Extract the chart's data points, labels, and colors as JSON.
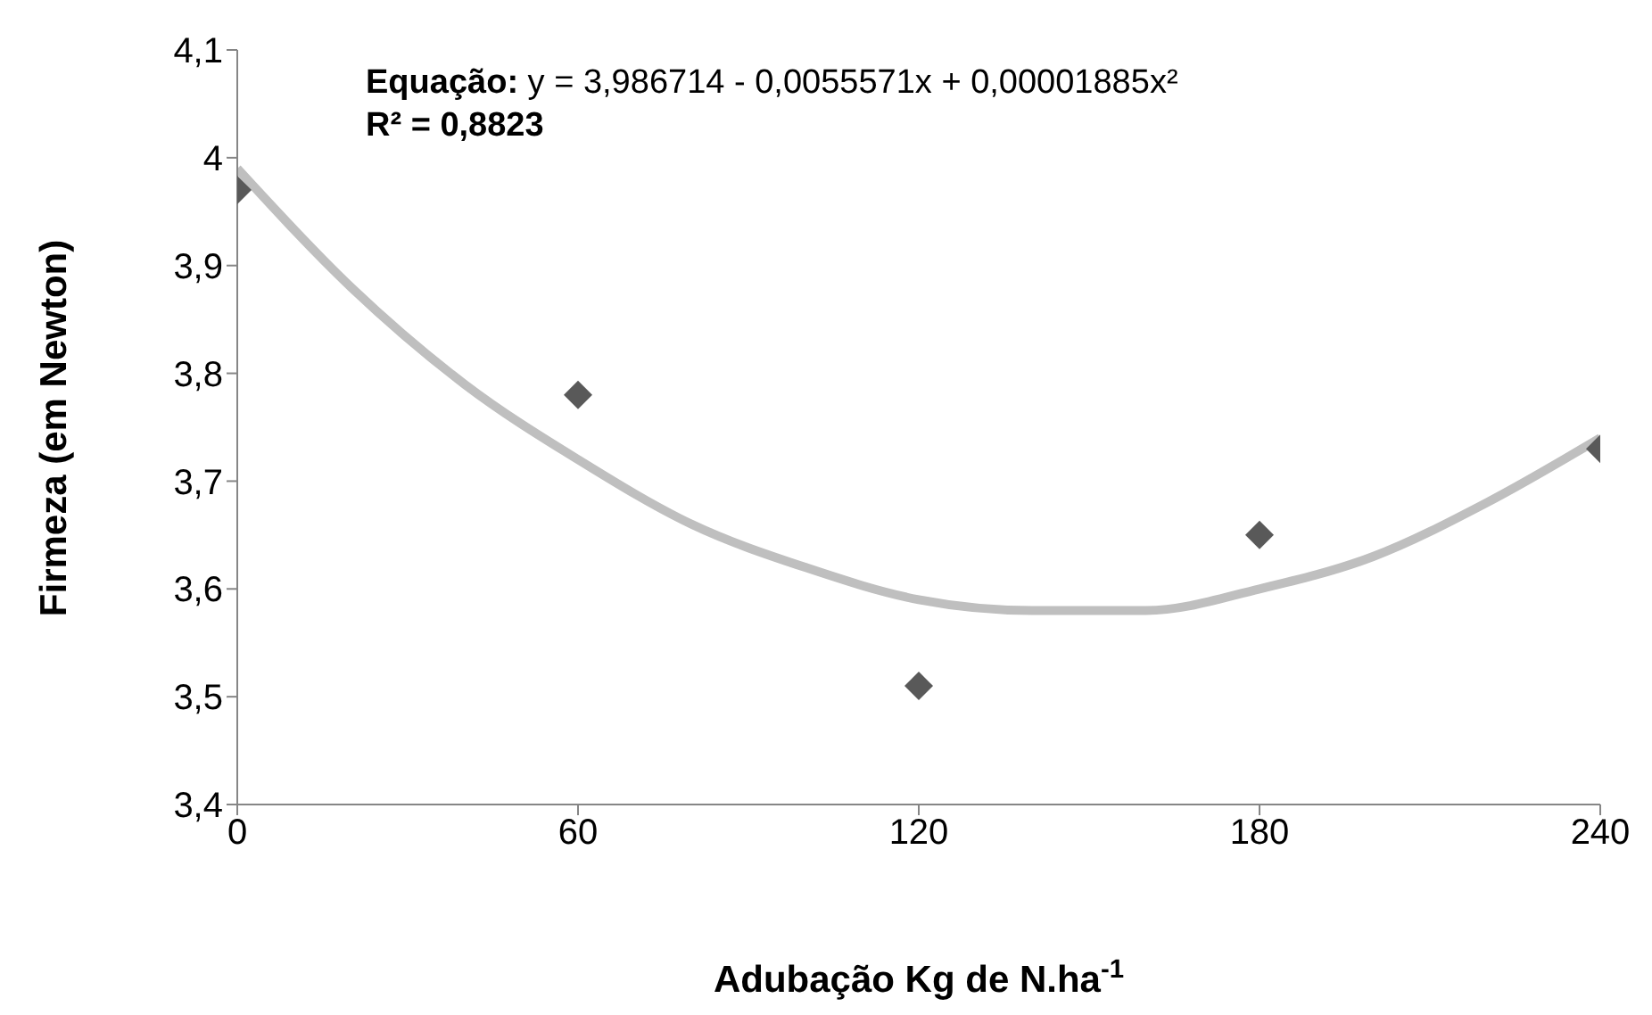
{
  "chart_data": {
    "type": "scatter",
    "xlabel": "Adubação Kg de N.ha$^{-1}$",
    "ylabel": "Firmeza (em Newton)",
    "annotations": [
      "Equação: y = 3,986714 - 0,0055571x + 0,00001885x²",
      "R² = 0,8823"
    ],
    "xlim": [
      0,
      240
    ],
    "xticks": [
      0,
      60,
      120,
      180,
      240
    ],
    "ylim": [
      3.4,
      4.1
    ],
    "yticks": [
      {
        "value": 3.4,
        "label": "3,4"
      },
      {
        "value": 3.5,
        "label": "3,5"
      },
      {
        "value": 3.6,
        "label": "3,6"
      },
      {
        "value": 3.7,
        "label": "3,7"
      },
      {
        "value": 3.8,
        "label": "3,8"
      },
      {
        "value": 3.9,
        "label": "3,9"
      },
      4,
      {
        "value": 4.1,
        "label": "4,1"
      }
    ],
    "grid": false,
    "series": [
      {
        "type": "line",
        "color": "#bfbfbf",
        "marker": "none",
        "line_style": "solid",
        "x": [
          0,
          20,
          40,
          60,
          80,
          100,
          120,
          140,
          160,
          180,
          200,
          220,
          240
        ],
        "values": [
          3.99,
          3.88,
          3.79,
          3.72,
          3.66,
          3.62,
          3.59,
          3.58,
          3.58,
          3.6,
          3.63,
          3.68,
          3.74
        ]
      },
      {
        "color": "#595959",
        "marker": "diamond",
        "x": [
          0,
          60,
          120,
          180,
          240
        ],
        "values": [
          3.97,
          3.78,
          3.51,
          3.65,
          3.73
        ]
      }
    ]
  }
}
